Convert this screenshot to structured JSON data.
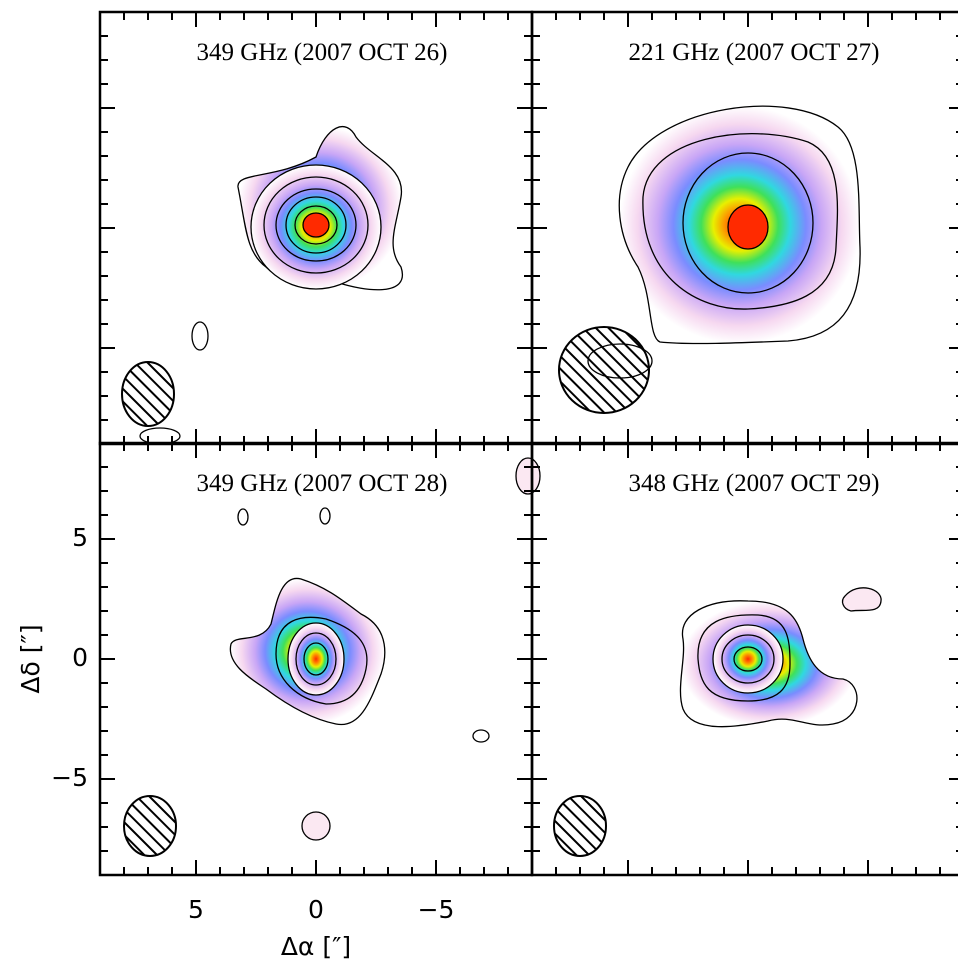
{
  "chart_data": [
    {
      "type": "contour",
      "title": "349 GHz (2007 OCT 26)",
      "xlim": [
        9,
        -9
      ],
      "ylim": [
        -9,
        9
      ],
      "xticks": [
        5,
        0,
        {
          "value": -5,
          "label": "−5"
        }
      ],
      "yticks": [
        {
          "value": -5,
          "label": "−5"
        },
        0,
        5
      ],
      "minor_xticks": [
        8,
        7,
        6,
        4,
        3,
        2,
        1,
        -1,
        -2,
        -3,
        -4,
        -6,
        -7,
        -8
      ],
      "minor_yticks": [
        -8,
        -7,
        -6,
        -4,
        -3,
        -2,
        -1,
        1,
        2,
        3,
        4,
        6,
        7,
        8
      ],
      "tick_labels": false
    },
    {
      "type": "contour",
      "title": "221 GHz (2007 OCT 27)",
      "xlim": [
        9,
        -9
      ],
      "ylim": [
        -9,
        9
      ],
      "xticks": [
        5,
        0,
        {
          "value": -5,
          "label": "−5"
        }
      ],
      "yticks": [
        {
          "value": -5,
          "label": "−5"
        },
        0,
        5
      ],
      "minor_xticks": [
        8,
        7,
        6,
        4,
        3,
        2,
        1,
        -1,
        -2,
        -3,
        -4,
        -6,
        -7,
        -8
      ],
      "minor_yticks": [
        -8,
        -7,
        -6,
        -4,
        -3,
        -2,
        -1,
        1,
        2,
        3,
        4,
        6,
        7,
        8
      ],
      "tick_labels": false
    },
    {
      "type": "contour",
      "title": "349 GHz (2007 OCT 28)",
      "xlabel": "Δα [″]",
      "ylabel": "Δδ [″]",
      "xlim": [
        9,
        -9
      ],
      "ylim": [
        -9,
        9
      ],
      "xticks": [
        5,
        0,
        {
          "value": -5,
          "label": "−5"
        }
      ],
      "yticks": [
        {
          "value": -5,
          "label": "−5"
        },
        0,
        5
      ],
      "minor_xticks": [
        8,
        7,
        6,
        4,
        3,
        2,
        1,
        -1,
        -2,
        -3,
        -4,
        -6,
        -7,
        -8
      ],
      "minor_yticks": [
        -8,
        -7,
        -6,
        -4,
        -3,
        -2,
        -1,
        1,
        2,
        3,
        4,
        6,
        7,
        8
      ],
      "tick_labels": true
    },
    {
      "type": "contour",
      "title": "348 GHz (2007 OCT 29)",
      "xlim": [
        9,
        -9
      ],
      "ylim": [
        -9,
        9
      ],
      "xticks": [
        5,
        0,
        {
          "value": -5,
          "label": "−5"
        }
      ],
      "yticks": [
        {
          "value": -5,
          "label": "−5"
        },
        0,
        5
      ],
      "minor_xticks": [
        8,
        7,
        6,
        4,
        3,
        2,
        1,
        -1,
        -2,
        -3,
        -4,
        -6,
        -7,
        -8
      ],
      "minor_yticks": [
        -8,
        -7,
        -6,
        -4,
        -3,
        -2,
        -1,
        1,
        2,
        3,
        4,
        6,
        7,
        8
      ],
      "tick_labels": false
    }
  ]
}
